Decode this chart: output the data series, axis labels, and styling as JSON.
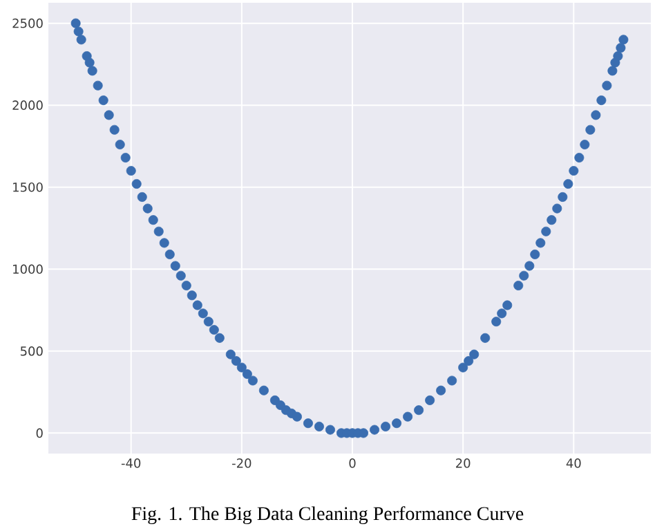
{
  "chart_data": {
    "type": "scatter",
    "x": [
      -50,
      -49.5,
      -49,
      -48,
      -47.5,
      -47,
      -46,
      -45,
      -44,
      -43,
      -42,
      -41,
      -40,
      -39,
      -38,
      -37,
      -36,
      -35,
      -34,
      -33,
      -32,
      -31,
      -30,
      -29,
      -28,
      -27,
      -26,
      -25,
      -24,
      -22,
      -21,
      -20,
      -19,
      -18,
      -16,
      -14,
      -13,
      -12,
      -11,
      -10,
      -8,
      -6,
      -4,
      -2,
      -1,
      0,
      1,
      2,
      4,
      6,
      8,
      10,
      12,
      14,
      16,
      18,
      20,
      21,
      22,
      24,
      26,
      27,
      28,
      30,
      31,
      32,
      33,
      34,
      35,
      36,
      37,
      38,
      39,
      40,
      41,
      42,
      43,
      44,
      45,
      46,
      47,
      47.5,
      48,
      48.5,
      49
    ],
    "values": [
      2500,
      2450,
      2400,
      2300,
      2260,
      2210,
      2120,
      2030,
      1940,
      1850,
      1760,
      1680,
      1600,
      1520,
      1440,
      1370,
      1300,
      1230,
      1160,
      1090,
      1020,
      960,
      900,
      840,
      780,
      730,
      680,
      630,
      580,
      480,
      440,
      400,
      360,
      320,
      260,
      200,
      170,
      140,
      120,
      100,
      60,
      40,
      20,
      0,
      0,
      0,
      0,
      0,
      20,
      40,
      60,
      100,
      140,
      200,
      260,
      320,
      400,
      440,
      480,
      580,
      680,
      730,
      780,
      900,
      960,
      1020,
      1090,
      1160,
      1230,
      1300,
      1370,
      1440,
      1520,
      1600,
      1680,
      1760,
      1850,
      1940,
      2030,
      2120,
      2210,
      2260,
      2300,
      2350,
      2400
    ],
    "color": "#3a6db0",
    "marker": "circle",
    "grid": true,
    "xlim": [
      -54.95,
      53.95
    ],
    "ylim": [
      -125,
      2625
    ],
    "xticks": [
      -40,
      -20,
      0,
      20,
      40
    ],
    "yticks": [
      0,
      500,
      1000,
      1500,
      2000,
      2500
    ],
    "annotations": [
      "Fig. 1. The Big Data Cleaning Performance Curve"
    ]
  }
}
